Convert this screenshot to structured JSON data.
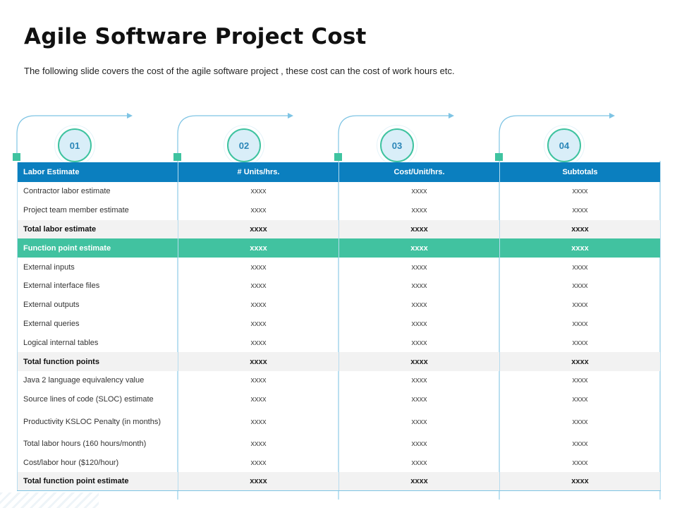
{
  "slide": {
    "title": "Agile Software Project Cost",
    "subtitle": "The following slide covers the cost of the agile software project , these cost can the cost of work hours etc."
  },
  "steps": [
    "01",
    "02",
    "03",
    "04"
  ],
  "table": {
    "headers": [
      "Labor Estimate",
      "# Units/hrs.",
      "Cost/Unit/hrs.",
      "Subtotals"
    ],
    "rows": [
      {
        "label": "Contractor labor estimate",
        "values": [
          "xxxx",
          "xxxx",
          "xxxx"
        ],
        "style": "normal"
      },
      {
        "label": "Project team member estimate",
        "values": [
          "xxxx",
          "xxxx",
          "xxxx"
        ],
        "style": "normal"
      },
      {
        "label": "Total labor estimate",
        "values": [
          "xxxx",
          "xxxx",
          "xxxx"
        ],
        "style": "total"
      },
      {
        "label": "Function point estimate",
        "values": [
          "xxxx",
          "xxxx",
          "xxxx"
        ],
        "style": "highlight"
      },
      {
        "label": "External inputs",
        "values": [
          "xxxx",
          "xxxx",
          "xxxx"
        ],
        "style": "normal"
      },
      {
        "label": "External interface files",
        "values": [
          "xxxx",
          "xxxx",
          "xxxx"
        ],
        "style": "normal"
      },
      {
        "label": "External outputs",
        "values": [
          "xxxx",
          "xxxx",
          "xxxx"
        ],
        "style": "normal"
      },
      {
        "label": "External queries",
        "values": [
          "xxxx",
          "xxxx",
          "xxxx"
        ],
        "style": "normal"
      },
      {
        "label": "Logical internal tables",
        "values": [
          "xxxx",
          "xxxx",
          "xxxx"
        ],
        "style": "normal"
      },
      {
        "label": "Total function points",
        "values": [
          "xxxx",
          "xxxx",
          "xxxx"
        ],
        "style": "total"
      },
      {
        "label": "Java 2 language equivalency value",
        "values": [
          "xxxx",
          "xxxx",
          "xxxx"
        ],
        "style": "normal"
      },
      {
        "label": "Source lines of code (SLOC) estimate",
        "values": [
          "xxxx",
          "xxxx",
          "xxxx"
        ],
        "style": "normal"
      },
      {
        "label": "Productivity KSLOC Penalty (in months)",
        "values": [
          "xxxx",
          "xxxx",
          "xxxx"
        ],
        "style": "tall"
      },
      {
        "label": "Total labor hours (160 hours/month)",
        "values": [
          "xxxx",
          "xxxx",
          "xxxx"
        ],
        "style": "normal"
      },
      {
        "label": "Cost/labor hour ($120/hour)",
        "values": [
          "xxxx",
          "xxxx",
          "xxxx"
        ],
        "style": "normal"
      },
      {
        "label": "Total function point estimate",
        "values": [
          "xxxx",
          "xxxx",
          "xxxx"
        ],
        "style": "total"
      }
    ]
  },
  "colors": {
    "header_blue": "#0b7fbf",
    "accent_green": "#41c2a0",
    "connector_blue": "#7ec4e4",
    "circle_fill": "#d9eef8"
  }
}
